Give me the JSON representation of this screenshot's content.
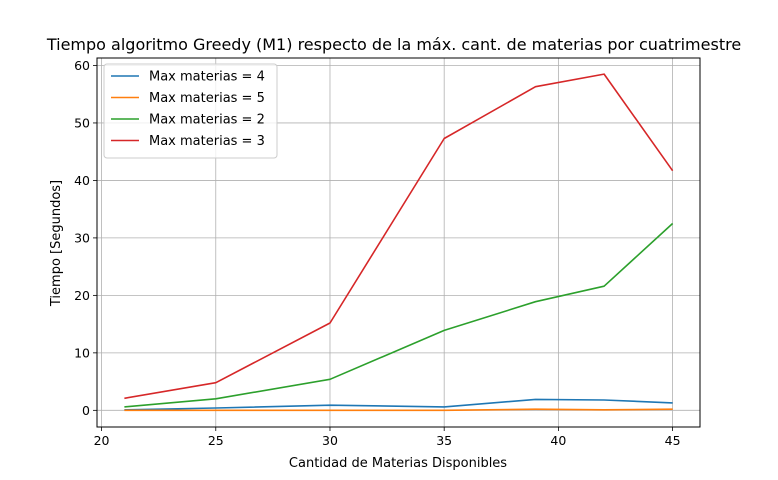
{
  "chart_data": {
    "type": "line",
    "title": "Tiempo algoritmo Greedy (M1) respecto de la máx. cant. de materias por cuatrimestre",
    "xlabel": "Cantidad de Materias Disponibles",
    "ylabel": "Tiempo [Segundos]",
    "xlim": [
      19.8,
      46.2
    ],
    "ylim": [
      -2.9,
      61.3
    ],
    "xticks": [
      20,
      25,
      30,
      35,
      40,
      45
    ],
    "yticks": [
      0,
      10,
      20,
      30,
      40,
      50,
      60
    ],
    "grid": true,
    "legend_position": "top-left",
    "x": [
      21,
      25,
      30,
      35,
      39,
      42,
      45
    ],
    "series": [
      {
        "name": "Max materias = 4",
        "color": "#1f77b4",
        "values": [
          0.1,
          0.4,
          0.9,
          0.6,
          1.9,
          1.8,
          1.3
        ]
      },
      {
        "name": "Max materias = 5",
        "color": "#ff7f0e",
        "values": [
          0.0,
          0.0,
          0.0,
          0.0,
          0.2,
          0.1,
          0.2
        ]
      },
      {
        "name": "Max materias = 2",
        "color": "#2ca02c",
        "values": [
          0.6,
          2.0,
          5.4,
          13.9,
          18.9,
          21.6,
          32.5
        ]
      },
      {
        "name": "Max materias = 3",
        "color": "#d62728",
        "values": [
          2.1,
          4.8,
          15.2,
          47.3,
          56.3,
          58.5,
          41.7
        ]
      }
    ]
  }
}
